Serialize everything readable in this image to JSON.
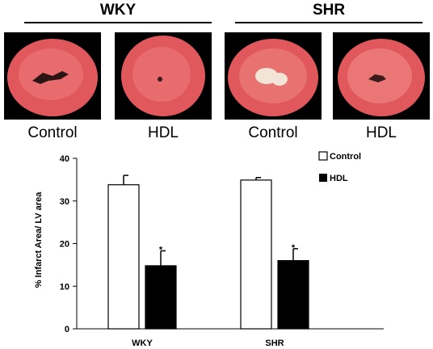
{
  "groups": [
    {
      "label": "WKY"
    },
    {
      "label": "SHR"
    }
  ],
  "panels": [
    {
      "condition": "Control",
      "group": "WKY"
    },
    {
      "condition": "HDL",
      "group": "WKY"
    },
    {
      "condition": "Control",
      "group": "SHR"
    },
    {
      "condition": "HDL",
      "group": "SHR"
    }
  ],
  "colors": {
    "tissue": "#e0585c",
    "tissue_light": "#f08a86",
    "infarct": "#f3e4d8",
    "control_bar": "#ffffff",
    "hdl_bar": "#000000"
  },
  "chart_data": {
    "type": "bar",
    "categories": [
      "WKY",
      "SHR"
    ],
    "series": [
      {
        "name": "Control",
        "values": [
          33.8,
          34.9
        ],
        "errors": [
          2.2,
          0.6
        ],
        "sig": [
          "",
          ""
        ]
      },
      {
        "name": "HDL",
        "values": [
          14.8,
          16.0
        ],
        "errors": [
          3.5,
          2.8
        ],
        "sig": [
          "*",
          "*"
        ]
      }
    ],
    "ylabel": "% Infarct Area/ LV area",
    "ylim": [
      0,
      40
    ],
    "yticks": [
      "0",
      "10",
      "20",
      "30",
      "40"
    ],
    "legend_position": "top-right",
    "grid": false
  }
}
